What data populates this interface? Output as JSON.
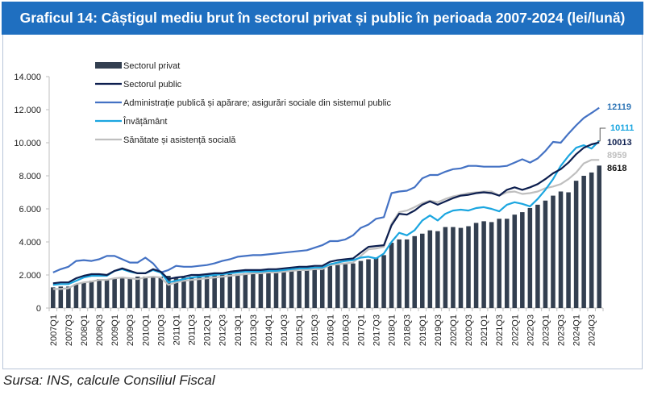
{
  "title": "Graficul 14: Câștigul mediu brut în sectorul privat și public în perioada 2007-2024 (lei/lună)",
  "source": "Sursa: INS, calcule Consiliul Fiscal",
  "chart_data": {
    "type": "bar+line",
    "title": "Graficul 14: Câștigul mediu brut în sectorul privat și public în perioada 2007-2024 (lei/lună)",
    "xlabel": "",
    "ylabel": "",
    "ylim": [
      0,
      14000
    ],
    "yticks": [
      0,
      2000,
      4000,
      6000,
      8000,
      10000,
      12000,
      14000
    ],
    "ytick_labels": [
      "0",
      "2.000",
      "4.000",
      "6.000",
      "8.000",
      "10.000",
      "12.000",
      "14.000"
    ],
    "grid": false,
    "legend_position": "top-left",
    "x": [
      "2007Q1",
      "2007Q2",
      "2007Q3",
      "2007Q4",
      "2008Q1",
      "2008Q2",
      "2008Q3",
      "2008Q4",
      "2009Q1",
      "2009Q2",
      "2009Q3",
      "2009Q4",
      "2010Q1",
      "2010Q2",
      "2010Q3",
      "2010Q4",
      "2011Q1",
      "2011Q2",
      "2011Q3",
      "2011Q4",
      "2012Q1",
      "2012Q2",
      "2012Q3",
      "2012Q4",
      "2013Q1",
      "2013Q2",
      "2013Q3",
      "2013Q4",
      "2014Q1",
      "2014Q2",
      "2014Q3",
      "2014Q4",
      "2015Q1",
      "2015Q2",
      "2015Q3",
      "2015Q4",
      "2016Q1",
      "2016Q2",
      "2016Q3",
      "2016Q4",
      "2017Q1",
      "2017Q2",
      "2017Q3",
      "2017Q4",
      "2018Q1",
      "2018Q2",
      "2018Q3",
      "2018Q4",
      "2019Q1",
      "2019Q2",
      "2019Q3",
      "2019Q4",
      "2020Q1",
      "2020Q2",
      "2020Q3",
      "2020Q4",
      "2021Q1",
      "2021Q2",
      "2021Q3",
      "2021Q4",
      "2022Q1",
      "2022Q2",
      "2022Q3",
      "2022Q4",
      "2023Q1",
      "2023Q2",
      "2023Q3",
      "2023Q4",
      "2024Q1",
      "2024Q2",
      "2024Q3",
      "2024Q4"
    ],
    "x_tick_labels_every": 2,
    "series": [
      {
        "name": "Sectorul privat",
        "type": "bar",
        "color": "#333f50",
        "values": [
          1250,
          1300,
          1300,
          1450,
          1550,
          1650,
          1750,
          1700,
          1800,
          1850,
          1800,
          1900,
          1900,
          1850,
          1900,
          1950,
          1800,
          1850,
          1900,
          1950,
          1950,
          2000,
          2000,
          2050,
          2050,
          2100,
          2100,
          2100,
          2150,
          2150,
          2200,
          2250,
          2250,
          2300,
          2350,
          2400,
          2550,
          2600,
          2650,
          2700,
          2850,
          2950,
          3050,
          3200,
          3950,
          4150,
          4150,
          4350,
          4500,
          4700,
          4650,
          4900,
          4900,
          4850,
          4950,
          5150,
          5250,
          5200,
          5400,
          5400,
          5650,
          5800,
          6050,
          6250,
          6500,
          6800,
          7050,
          7000,
          7700,
          8000,
          8200,
          8618
        ]
      },
      {
        "name": "Sectorul public",
        "type": "line",
        "color": "#0d1f4f",
        "values": [
          1500,
          1550,
          1550,
          1800,
          1950,
          2050,
          2050,
          2000,
          2250,
          2400,
          2250,
          2100,
          2100,
          2350,
          2200,
          1750,
          1850,
          1900,
          2000,
          2000,
          2050,
          2100,
          2100,
          2200,
          2250,
          2300,
          2300,
          2300,
          2350,
          2350,
          2400,
          2450,
          2500,
          2500,
          2550,
          2550,
          2800,
          2900,
          2950,
          3000,
          3350,
          3700,
          3750,
          3800,
          5000,
          5700,
          5650,
          5900,
          6250,
          6450,
          6250,
          6450,
          6650,
          6800,
          6850,
          6950,
          7000,
          6950,
          6800,
          7150,
          7300,
          7150,
          7300,
          7500,
          7800,
          8150,
          8400,
          8800,
          9300,
          9700,
          9900,
          10013
        ]
      },
      {
        "name": "Administrație publică și apărare; asigurări sociale din sistemul public",
        "type": "line",
        "color": "#4472c4",
        "values": [
          2150,
          2350,
          2500,
          2850,
          2900,
          2850,
          2950,
          3150,
          3150,
          2950,
          2750,
          2750,
          3050,
          2700,
          2150,
          2300,
          2550,
          2500,
          2500,
          2550,
          2600,
          2700,
          2850,
          2950,
          3100,
          3150,
          3200,
          3200,
          3250,
          3300,
          3350,
          3400,
          3450,
          3500,
          3650,
          3800,
          4050,
          4050,
          4150,
          4400,
          4850,
          5050,
          5400,
          5500,
          6950,
          7050,
          7100,
          7300,
          7850,
          8050,
          8050,
          8250,
          8400,
          8450,
          8600,
          8600,
          8550,
          8550,
          8550,
          8600,
          8800,
          9000,
          8800,
          9050,
          9500,
          10050,
          10000,
          10550,
          11050,
          11500,
          11800,
          12119
        ]
      },
      {
        "name": "Învățământ",
        "type": "line",
        "color": "#1ba6e0",
        "values": [
          1400,
          1450,
          1450,
          1650,
          1850,
          1950,
          1950,
          1950,
          2250,
          2350,
          2200,
          2100,
          2100,
          2300,
          2150,
          1550,
          1650,
          1750,
          1850,
          1900,
          1950,
          2000,
          2050,
          2100,
          2150,
          2200,
          2200,
          2200,
          2250,
          2250,
          2300,
          2350,
          2400,
          2400,
          2450,
          2450,
          2650,
          2750,
          2850,
          2900,
          3050,
          3100,
          3000,
          3300,
          4000,
          4550,
          4400,
          4700,
          5300,
          5600,
          5300,
          5700,
          5900,
          5950,
          5900,
          6050,
          6100,
          6000,
          5850,
          6250,
          6400,
          6300,
          6150,
          6600,
          7150,
          7800,
          8600,
          9200,
          9700,
          9850,
          9650,
          10111
        ]
      },
      {
        "name": "Sănătate și asistență socială",
        "type": "line",
        "color": "#bfbfbf",
        "values": [
          1150,
          1150,
          1200,
          1450,
          1550,
          1600,
          1700,
          1700,
          1800,
          1850,
          1800,
          1750,
          1850,
          1900,
          1850,
          1400,
          1550,
          1650,
          1700,
          1750,
          1800,
          1850,
          1900,
          1950,
          2000,
          2050,
          2100,
          2100,
          2150,
          2150,
          2200,
          2250,
          2300,
          2300,
          2350,
          2350,
          2600,
          2650,
          2700,
          2750,
          3150,
          3550,
          3600,
          3700,
          5100,
          5800,
          5900,
          6100,
          6350,
          6500,
          6400,
          6600,
          6750,
          6850,
          6950,
          7000,
          7050,
          7050,
          6800,
          7000,
          7050,
          6900,
          6950,
          7050,
          7250,
          7350,
          7500,
          7800,
          8200,
          8750,
          8959,
          8959
        ]
      }
    ],
    "end_labels": [
      {
        "series": "Administrație publică și apărare; asigurări sociale din sistemul public",
        "value": "12119",
        "color": "#2e75b6"
      },
      {
        "series": "Învățământ",
        "value": "10111",
        "color": "#1ba6e0"
      },
      {
        "series": "Sectorul public",
        "value": "10013",
        "color": "#0d1f4f"
      },
      {
        "series": "Sănătate și asistență socială",
        "value": "8959",
        "color": "#bfbfbf"
      },
      {
        "series": "Sectorul privat",
        "value": "8618",
        "color": "#111111"
      }
    ]
  }
}
